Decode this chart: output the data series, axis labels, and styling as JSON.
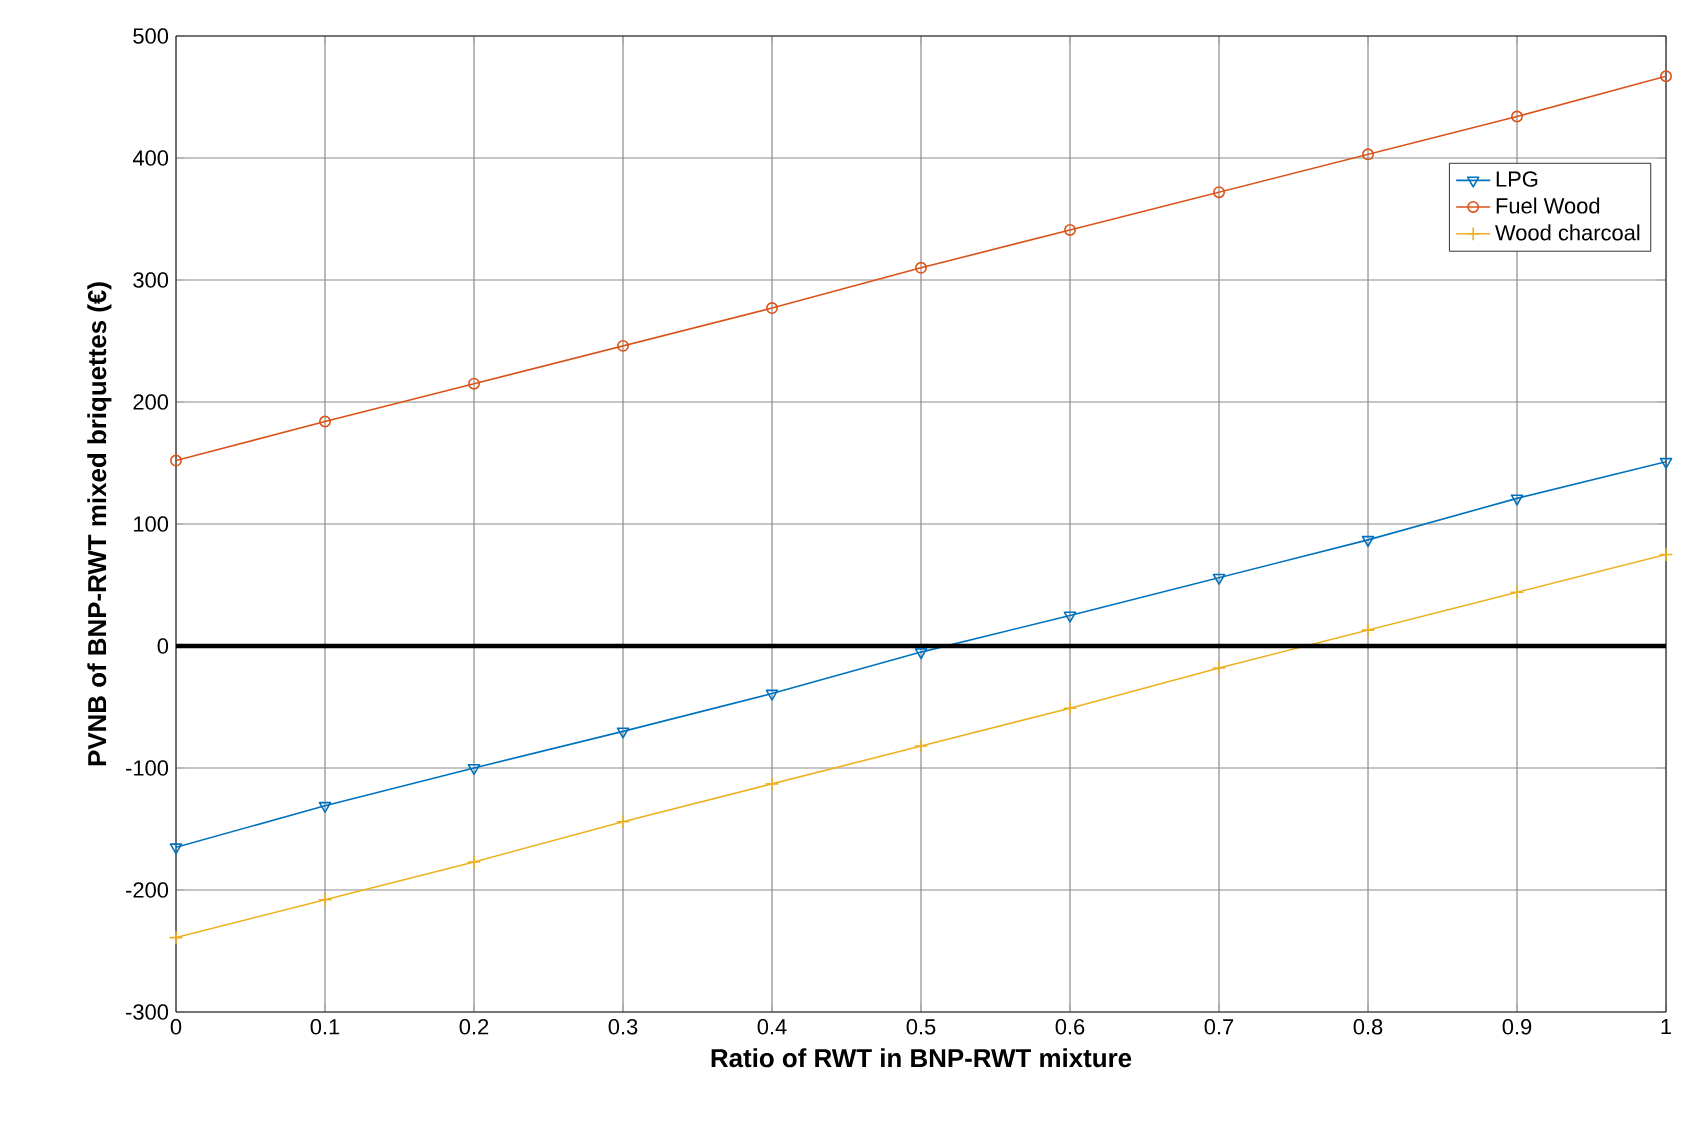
{
  "chart_data": {
    "type": "line",
    "xlabel": "Ratio of RWT in BNP-RWT mixture",
    "ylabel": "PVNB of BNP-RWT mixed briquettes (€)",
    "x": [
      0,
      0.1,
      0.2,
      0.3,
      0.4,
      0.5,
      0.6,
      0.7,
      0.8,
      0.9,
      1
    ],
    "series": [
      {
        "name": "LPG",
        "color": "#0072bd",
        "marker": "triangle",
        "values": [
          -165,
          -131,
          -100,
          -70,
          -39,
          -5,
          25,
          56,
          87,
          121,
          151
        ]
      },
      {
        "name": "Fuel Wood",
        "color": "#d95319",
        "marker": "circle",
        "values": [
          152,
          184,
          215,
          246,
          277,
          310,
          341,
          372,
          403,
          434,
          467
        ]
      },
      {
        "name": "Wood charcoal",
        "color": "#edb120",
        "marker": "cross",
        "values": [
          -239,
          -208,
          -177,
          -144,
          -113,
          -82,
          -51,
          -18,
          13,
          44,
          75
        ]
      }
    ],
    "xlim": [
      0,
      1
    ],
    "xticks": [
      0,
      0.1,
      0.2,
      0.3,
      0.4,
      0.5,
      0.6,
      0.7,
      0.8,
      0.9,
      1
    ],
    "ylim": [
      -300,
      500
    ],
    "yticks": [
      -300,
      -200,
      -100,
      0,
      100,
      200,
      300,
      400,
      500
    ],
    "ref_lines": [
      {
        "axis": "y",
        "value": 0,
        "color": "#000000"
      }
    ],
    "grid": true,
    "legend": "top right",
    "line_style": "solid"
  }
}
